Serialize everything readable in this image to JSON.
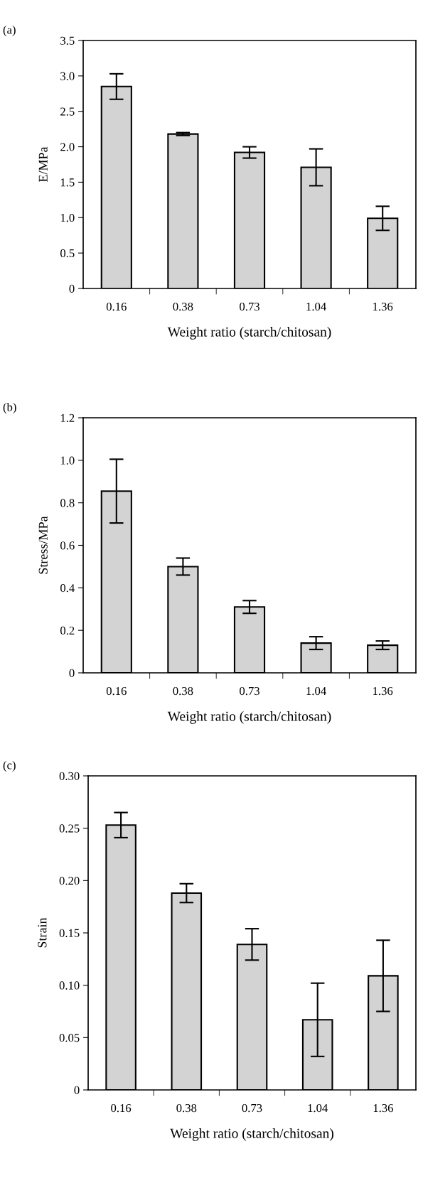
{
  "chart_data": [
    {
      "type": "bar",
      "title": "(a)",
      "xlabel": "Weight ratio (starch/chitosan)",
      "ylabel": "E/MPa",
      "categories": [
        "0.16",
        "0.38",
        "0.73",
        "1.04",
        "1.36"
      ],
      "color": "#d3d3d3",
      "values": [
        2.85,
        2.18,
        1.92,
        1.71,
        0.99
      ],
      "errors": [
        0.18,
        0.02,
        0.08,
        0.26,
        0.17
      ],
      "ylim": [
        0,
        3.5
      ],
      "yticks": [
        {
          "value": 0,
          "label": "0"
        },
        0.5,
        {
          "value": 1,
          "label": "1.0"
        },
        1.5,
        {
          "value": 2,
          "label": "2.0"
        },
        2.5,
        {
          "value": 3,
          "label": "3.0"
        },
        3.5
      ],
      "grid": false
    },
    {
      "type": "bar",
      "title": "(b)",
      "xlabel": "Weight ratio (starch/chitosan)",
      "ylabel": "Stress/MPa",
      "categories": [
        "0.16",
        "0.38",
        "0.73",
        "1.04",
        "1.36"
      ],
      "color": "#d3d3d3",
      "values": [
        0.855,
        0.5,
        0.31,
        0.14,
        0.13
      ],
      "errors": [
        0.15,
        0.04,
        0.03,
        0.03,
        0.02
      ],
      "ylim": [
        0,
        1.2
      ],
      "yticks": [
        {
          "value": 0,
          "label": "0"
        },
        0.2,
        0.4,
        0.6,
        0.8,
        {
          "value": 1,
          "label": "1.0"
        },
        1.2
      ],
      "grid": false
    },
    {
      "type": "bar",
      "title": "(c)",
      "xlabel": "Weight ratio (starch/chitosan)",
      "ylabel": "Strain",
      "categories": [
        "0.16",
        "0.38",
        "0.73",
        "1.04",
        "1.36"
      ],
      "color": "#d3d3d3",
      "values": [
        0.253,
        0.188,
        0.139,
        0.067,
        0.109
      ],
      "errors": [
        0.012,
        0.009,
        0.015,
        0.035,
        0.034
      ],
      "ylim": [
        0,
        0.3
      ],
      "yticks": [
        {
          "value": 0,
          "label": "0"
        },
        {
          "value": 0.05,
          "label": "0.05"
        },
        {
          "value": 0.1,
          "label": "0.10"
        },
        {
          "value": 0.15,
          "label": "0.15"
        },
        {
          "value": 0.2,
          "label": "0.20"
        },
        {
          "value": 0.25,
          "label": "0.25"
        },
        {
          "value": 0.3,
          "label": "0.30"
        }
      ],
      "grid": false
    }
  ]
}
